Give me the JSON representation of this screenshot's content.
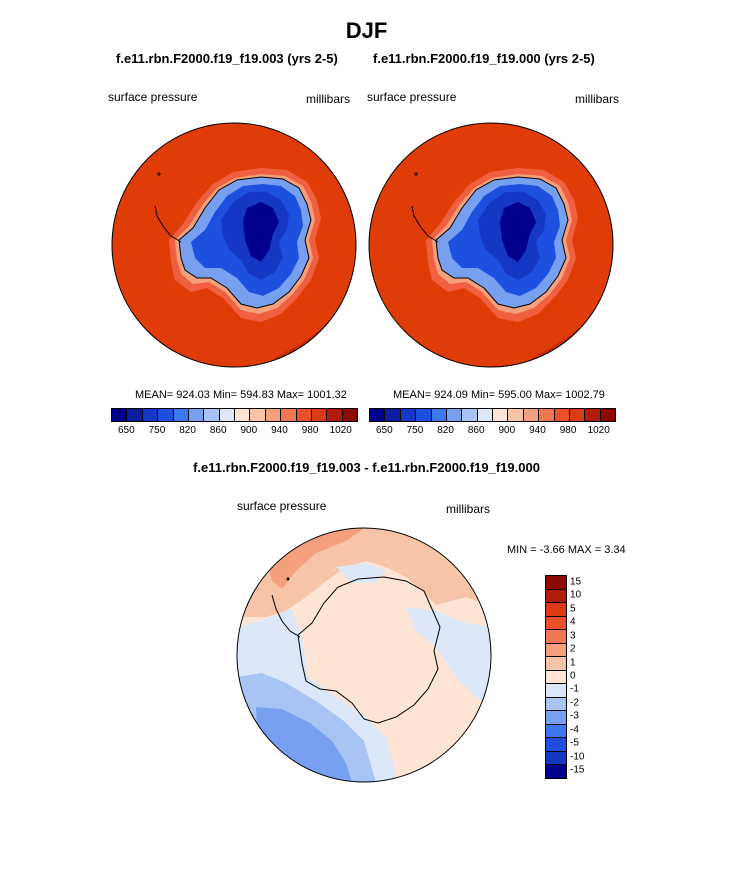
{
  "season": "DJF",
  "panels": [
    {
      "case": "f.e11.rbn.F2000.f19_f19.003 (yrs 2-5)",
      "variable": "surface pressure",
      "units": "millibars",
      "stats": "MEAN= 924.03  Min= 594.83  Max= 1001.32"
    },
    {
      "case": "f.e11.rbn.F2000.f19_f19.000 (yrs 2-5)",
      "variable": "surface pressure",
      "units": "millibars",
      "stats": "MEAN= 924.09  Min= 595.00  Max= 1002.79"
    }
  ],
  "abs_colorbar": {
    "colors": [
      "#00008c",
      "#0a1e9e",
      "#1438c4",
      "#1e50e0",
      "#3c78f0",
      "#78a0f0",
      "#a8c4f4",
      "#dce8f8",
      "#fde4d4",
      "#f8c4a8",
      "#f4a07c",
      "#f07850",
      "#ec5028",
      "#dc3a14",
      "#b01c08",
      "#8c0a00"
    ],
    "labels": [
      "650",
      "750",
      "820",
      "860",
      "900",
      "940",
      "980",
      "1020"
    ]
  },
  "difference": {
    "title": "f.e11.rbn.F2000.f19_f19.003 - f.e11.rbn.F2000.f19_f19.000",
    "variable": "surface pressure",
    "units": "millibars",
    "stats": "MIN =  -3.66 MAX =   3.34",
    "colorbar": {
      "colors": [
        "#8c0a00",
        "#b01c08",
        "#dc3a14",
        "#ec5028",
        "#f07850",
        "#f4a07c",
        "#f8c4a8",
        "#fde4d4",
        "#dce8f8",
        "#a8c4f4",
        "#78a0f0",
        "#3c78f0",
        "#1e50e0",
        "#1438c4",
        "#00008c"
      ],
      "labels": [
        "15",
        "10",
        "5",
        "4",
        "3",
        "2",
        "1",
        "0",
        "-1",
        "-2",
        "-3",
        "-4",
        "-5",
        "-10",
        "-15"
      ]
    }
  },
  "map_colors": {
    "ocean_high": "#e03c08",
    "coast_band1": "#f06040",
    "coast_band2": "#f4a07c",
    "ice_edge": "#78a0f0",
    "ice_mid": "#1e50e0",
    "ice_deep": "#1438c4",
    "ice_core": "#00008c",
    "diff_neutral": "#fde4d4",
    "diff_pos1": "#f8c4a8",
    "diff_pos2": "#f4a07c",
    "diff_neg1": "#dce8f8",
    "diff_neg2": "#a8c4f4",
    "diff_neg3": "#78a0f0"
  }
}
